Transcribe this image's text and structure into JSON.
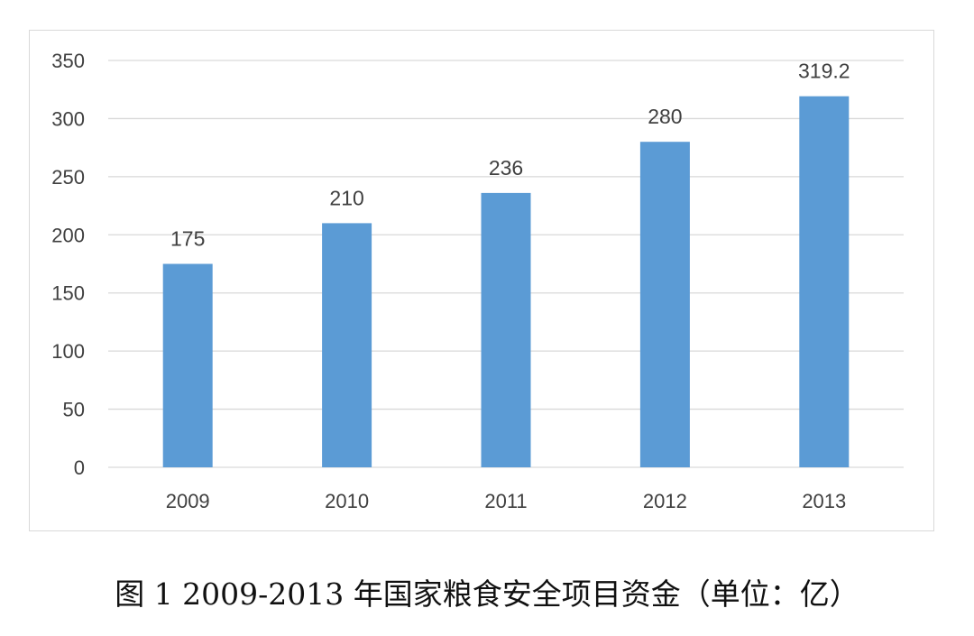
{
  "chart_data": {
    "type": "bar",
    "categories": [
      "2009",
      "2010",
      "2011",
      "2012",
      "2013"
    ],
    "values": [
      175,
      210,
      236,
      280,
      319.2
    ],
    "data_labels": [
      "175",
      "210",
      "236",
      "280",
      "319.2"
    ],
    "ylim": [
      0,
      350
    ],
    "yticks": [
      0,
      50,
      100,
      150,
      200,
      250,
      300,
      350
    ],
    "grid": true,
    "bar_color": "#5b9bd5",
    "grid_color": "#d9d9d9"
  },
  "caption": "图 1 2009-2013 年国家粮食安全项目资金（单位：亿）"
}
